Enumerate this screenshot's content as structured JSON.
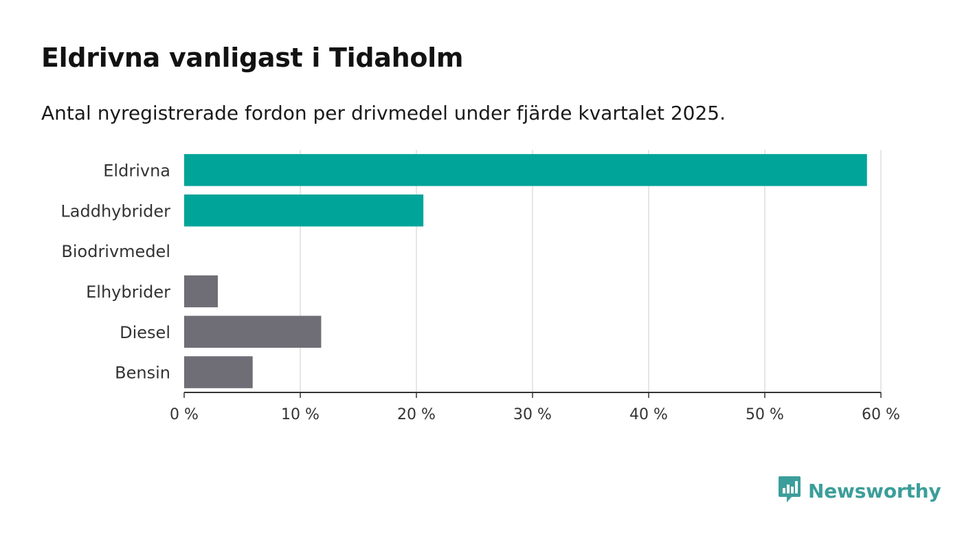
{
  "title": "Eldrivna vanligast i Tidaholm",
  "subtitle": "Antal nyregistrerade fordon per drivmedel under fjärde kvartalet 2025.",
  "brand": {
    "name": "Newsworthy",
    "color": "#3c9e9a",
    "icon": "newsworthy-logo-icon"
  },
  "colors": {
    "highlight": "#00a499",
    "other": "#6f6e76",
    "grid": "#dddddd",
    "axis": "#333333"
  },
  "chart_data": {
    "type": "bar",
    "orientation": "horizontal",
    "categories": [
      "Eldrivna",
      "Laddhybrider",
      "Biodrivmedel",
      "Elhybrider",
      "Diesel",
      "Bensin"
    ],
    "values": [
      58.8,
      20.6,
      0,
      2.9,
      11.8,
      5.9
    ],
    "bar_color_keys": [
      "highlight",
      "highlight",
      "other",
      "other",
      "other",
      "other"
    ],
    "xlim": [
      0,
      60
    ],
    "xticks": [
      0,
      10,
      20,
      30,
      40,
      50,
      60
    ],
    "xtick_labels": [
      "0 %",
      "10 %",
      "20 %",
      "30 %",
      "40 %",
      "50 %",
      "60 %"
    ],
    "xlabel": "",
    "ylabel": "",
    "grid": true
  }
}
